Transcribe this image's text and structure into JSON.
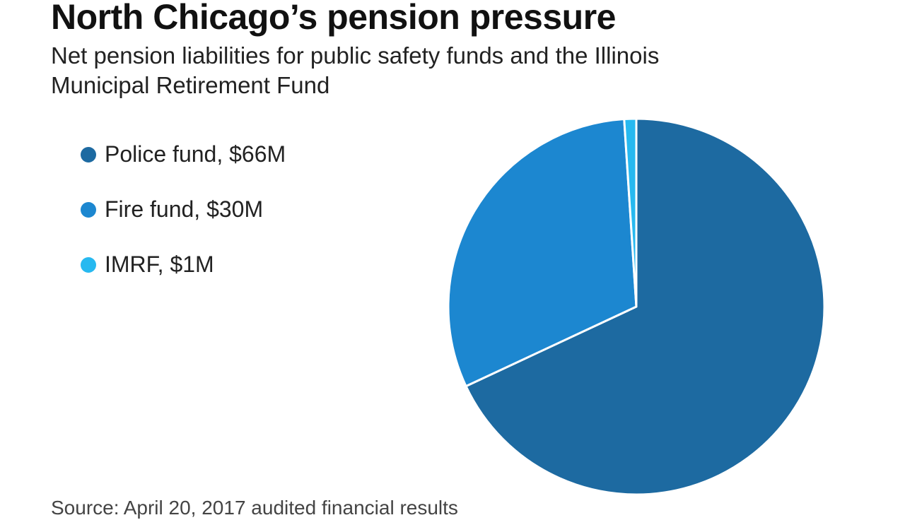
{
  "chart_data": {
    "type": "pie",
    "title": "North Chicago’s pension pressure",
    "subtitle": "Net pension liabilities for public safety funds and the Illinois Municipal Retirement Fund",
    "slices": [
      {
        "label": "Police fund, $66M",
        "value": 66,
        "color": "#1d6aa1"
      },
      {
        "label": "Fire fund, $30M",
        "value": 30,
        "color": "#1c87d0"
      },
      {
        "label": "IMRF, $1M",
        "value": 1,
        "color": "#27b9f0"
      }
    ],
    "legend_placement": "left",
    "source": "Source: April 20, 2017 audited financial results"
  }
}
